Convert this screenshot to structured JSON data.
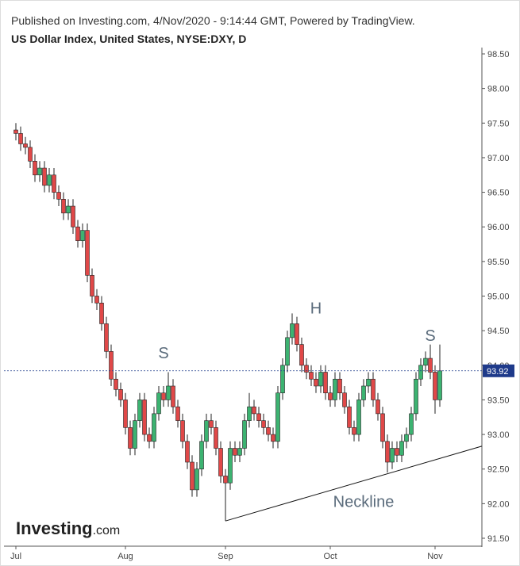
{
  "chart_data": {
    "type": "candlestick",
    "title": "Published on Investing.com, 4/Nov/2020 - 9:14:44 GMT, Powered by TradingView.",
    "subtitle": "US Dollar Index, United States, NYSE:DXY, D",
    "logo": {
      "main": "Investing",
      "suffix": ".com"
    },
    "categories": [
      "Jul",
      null,
      null,
      null,
      null,
      null,
      null,
      null,
      null,
      null,
      null,
      null,
      null,
      null,
      null,
      null,
      null,
      null,
      null,
      null,
      null,
      null,
      null,
      "Aug",
      null,
      null,
      null,
      null,
      null,
      null,
      null,
      null,
      null,
      null,
      null,
      null,
      null,
      null,
      null,
      null,
      null,
      null,
      null,
      null,
      "Sep",
      null,
      null,
      null,
      null,
      null,
      null,
      null,
      null,
      null,
      null,
      null,
      null,
      null,
      null,
      null,
      null,
      null,
      null,
      null,
      null,
      null,
      "Oct",
      null,
      null,
      null,
      null,
      null,
      null,
      null,
      null,
      null,
      null,
      null,
      null,
      null,
      null,
      null,
      null,
      null,
      null,
      null,
      null,
      null,
      "Nov",
      null
    ],
    "open": [
      97.4,
      97.35,
      97.2,
      97.15,
      96.95,
      96.75,
      96.85,
      96.6,
      96.75,
      96.5,
      96.4,
      96.2,
      96.3,
      96.0,
      95.8,
      95.95,
      95.3,
      95.0,
      94.9,
      94.6,
      94.2,
      93.8,
      93.65,
      93.5,
      93.1,
      92.8,
      93.2,
      93.5,
      93.0,
      92.9,
      93.3,
      93.6,
      93.5,
      93.7,
      93.4,
      93.2,
      92.9,
      92.6,
      92.2,
      92.5,
      92.9,
      93.2,
      93.1,
      92.8,
      92.4,
      92.3,
      92.8,
      92.7,
      92.8,
      93.2,
      93.4,
      93.3,
      93.2,
      93.1,
      93.0,
      92.9,
      93.6,
      94.0,
      94.4,
      94.6,
      94.3,
      94.0,
      93.9,
      93.8,
      93.7,
      93.9,
      93.6,
      93.5,
      93.8,
      93.6,
      93.4,
      93.1,
      93.0,
      93.5,
      93.7,
      93.8,
      93.5,
      93.3,
      92.9,
      92.6,
      92.8,
      92.7,
      92.9,
      93.0,
      93.3,
      93.8,
      94.0,
      94.1,
      93.9,
      93.5
    ],
    "high": [
      97.5,
      97.45,
      97.3,
      97.25,
      97.05,
      96.95,
      96.95,
      96.85,
      96.85,
      96.6,
      96.5,
      96.4,
      96.4,
      96.1,
      96.05,
      96.05,
      95.4,
      95.1,
      95.0,
      94.7,
      94.3,
      93.9,
      93.75,
      93.6,
      93.2,
      93.3,
      93.6,
      93.6,
      93.1,
      93.4,
      93.7,
      93.7,
      93.9,
      93.8,
      93.5,
      93.3,
      93.0,
      92.7,
      92.6,
      93.0,
      93.3,
      93.3,
      93.2,
      92.9,
      92.5,
      92.9,
      92.9,
      92.9,
      93.3,
      93.6,
      93.5,
      93.4,
      93.3,
      93.2,
      93.1,
      93.7,
      94.1,
      94.5,
      94.75,
      94.7,
      94.4,
      94.1,
      94.0,
      93.9,
      94.0,
      94.0,
      93.7,
      93.9,
      93.9,
      93.7,
      93.5,
      93.2,
      93.6,
      93.8,
      93.9,
      93.9,
      93.6,
      93.4,
      93.0,
      92.9,
      92.9,
      93.0,
      93.1,
      93.4,
      93.9,
      94.1,
      94.2,
      94.3,
      94.0,
      94.3
    ],
    "low": [
      97.25,
      97.1,
      97.05,
      96.85,
      96.65,
      96.65,
      96.5,
      96.5,
      96.4,
      96.3,
      96.1,
      96.1,
      95.9,
      95.7,
      95.7,
      95.2,
      94.9,
      94.8,
      94.5,
      94.1,
      93.7,
      93.55,
      93.4,
      93.0,
      92.7,
      92.7,
      93.1,
      92.9,
      92.8,
      92.8,
      93.2,
      93.4,
      93.4,
      93.3,
      93.1,
      92.8,
      92.5,
      92.1,
      92.1,
      92.4,
      92.8,
      93.0,
      92.7,
      92.3,
      91.75,
      92.2,
      92.6,
      92.6,
      92.7,
      93.1,
      93.2,
      93.1,
      93.0,
      92.9,
      92.8,
      92.8,
      93.5,
      93.9,
      94.3,
      94.2,
      93.9,
      93.8,
      93.7,
      93.6,
      93.6,
      93.5,
      93.4,
      93.4,
      93.5,
      93.3,
      93.0,
      92.9,
      92.9,
      93.4,
      93.6,
      93.4,
      93.2,
      92.8,
      92.45,
      92.5,
      92.6,
      92.6,
      92.8,
      92.9,
      93.2,
      93.7,
      93.9,
      93.8,
      93.3,
      93.4
    ],
    "close": [
      97.35,
      97.2,
      97.15,
      96.95,
      96.75,
      96.85,
      96.6,
      96.75,
      96.5,
      96.4,
      96.2,
      96.3,
      96.0,
      95.8,
      95.95,
      95.3,
      95.0,
      94.9,
      94.6,
      94.2,
      93.8,
      93.65,
      93.5,
      93.1,
      92.8,
      93.2,
      93.5,
      93.0,
      92.9,
      93.3,
      93.6,
      93.5,
      93.7,
      93.4,
      93.2,
      92.9,
      92.6,
      92.2,
      92.5,
      92.9,
      93.2,
      93.1,
      92.8,
      92.4,
      92.3,
      92.8,
      92.7,
      92.8,
      93.2,
      93.4,
      93.3,
      93.2,
      93.1,
      93.0,
      92.9,
      93.6,
      94.0,
      94.4,
      94.6,
      94.3,
      94.0,
      93.9,
      93.8,
      93.7,
      93.9,
      93.6,
      93.5,
      93.8,
      93.6,
      93.4,
      93.1,
      93.0,
      93.5,
      93.7,
      93.8,
      93.5,
      93.3,
      92.9,
      92.6,
      92.8,
      92.7,
      92.9,
      93.0,
      93.3,
      93.8,
      94.0,
      94.1,
      93.9,
      93.5,
      93.92
    ],
    "up_color": "#3cb371",
    "down_color": "#e04848",
    "last_price": 93.92,
    "last_price_color": "#1e3a8a",
    "ylim": [
      91.35,
      98.6
    ],
    "yticks": [
      {
        "value": 91.5,
        "label": "91.50"
      },
      {
        "value": 92,
        "label": "92.00"
      },
      {
        "value": 92.5,
        "label": "92.50"
      },
      {
        "value": 93,
        "label": "93.00"
      },
      {
        "value": 93.5,
        "label": "93.50"
      },
      {
        "value": 94,
        "label": "94.00"
      },
      {
        "value": 94.5,
        "label": "94.50"
      },
      {
        "value": 95,
        "label": "95.00"
      },
      {
        "value": 95.5,
        "label": "95.50"
      },
      {
        "value": 96,
        "label": "96.00"
      },
      {
        "value": 96.5,
        "label": "96.50"
      },
      {
        "value": 97,
        "label": "97.00"
      },
      {
        "value": 97.5,
        "label": "97.50"
      },
      {
        "value": 98,
        "label": "98.00"
      },
      {
        "value": 98.5,
        "label": "98.50"
      }
    ],
    "annotations": [
      {
        "text": "S",
        "x": 31,
        "y": 94.1
      },
      {
        "text": "H",
        "x": 63,
        "y": 94.75
      },
      {
        "text": "S",
        "x": 87,
        "y": 94.35
      },
      {
        "text": "Neckline",
        "x": 73,
        "y": 91.95
      }
    ],
    "neckline": {
      "x": [
        44,
        97.8
      ],
      "y": [
        91.75,
        92.83
      ]
    }
  }
}
